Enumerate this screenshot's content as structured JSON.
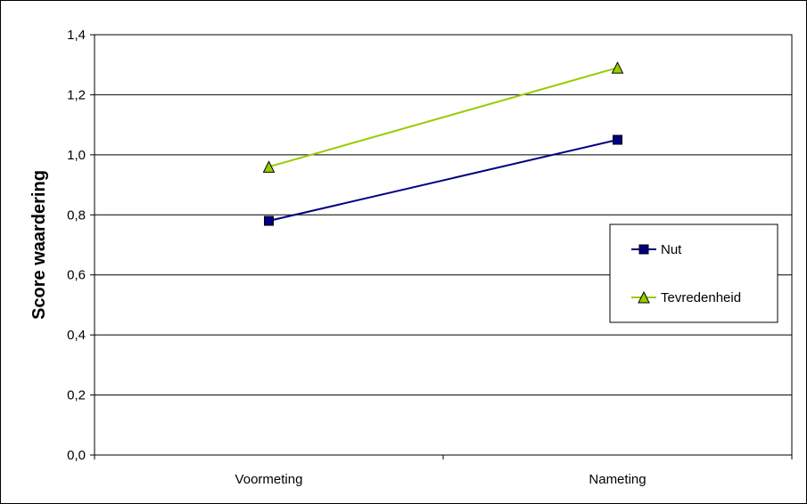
{
  "chart_data": {
    "type": "line",
    "categories": [
      "Voormeting",
      "Nameting"
    ],
    "series": [
      {
        "name": "Nut",
        "values": [
          0.78,
          1.05
        ],
        "color": "#000080",
        "marker": "square"
      },
      {
        "name": "Tevredenheid",
        "values": [
          0.96,
          1.29
        ],
        "color": "#99CC00",
        "marker": "triangle"
      }
    ],
    "ylabel": "Score waardering",
    "xlabel": "",
    "ylim": [
      0,
      1.4
    ],
    "yticks": [
      0,
      0.2,
      0.4,
      0.6,
      0.8,
      1.0,
      1.2,
      1.4
    ],
    "ytick_labels": [
      "0,0",
      "0,2",
      "0,4",
      "0,6",
      "0,8",
      "1,0",
      "1,2",
      "1,4"
    ],
    "grid": true,
    "legend_position": "right"
  }
}
